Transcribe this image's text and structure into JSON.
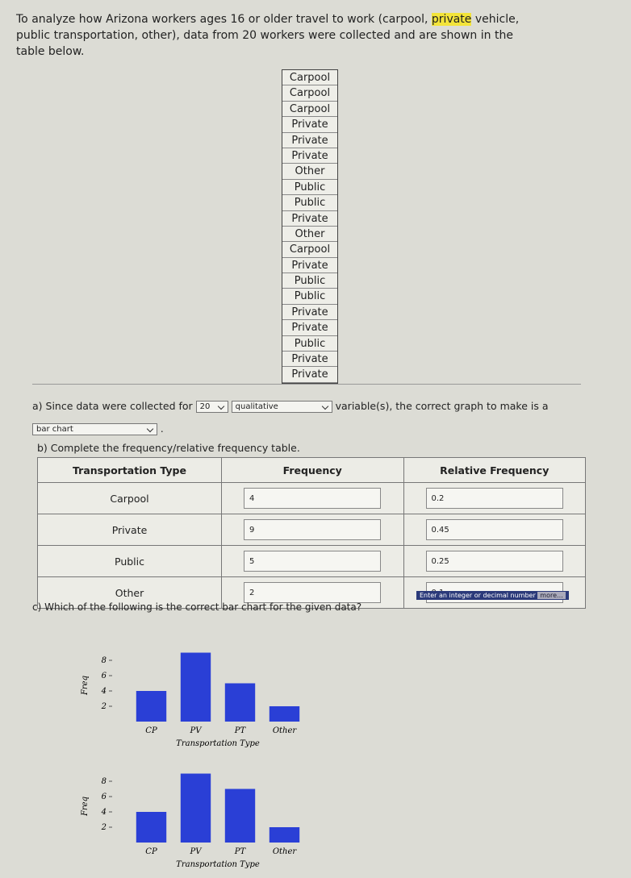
{
  "intro": {
    "before": "To analyze how Arizona workers ages 16 or older travel to work (carpool,",
    "highlight": "private",
    "after": "vehicle, public transportation, other), data from 20 workers were collected and are shown in the table below."
  },
  "data_list": [
    "Carpool",
    "Carpool",
    "Carpool",
    "Private",
    "Private",
    "Private",
    "Other",
    "Public",
    "Public",
    "Private",
    "Other",
    "Carpool",
    "Private",
    "Public",
    "Public",
    "Private",
    "Private",
    "Public",
    "Private",
    "Private"
  ],
  "part_a": {
    "prefix": "a) Since data were collected for",
    "dropdown1": "20",
    "dropdown2": "qualitative",
    "middle": "variable(s), the correct graph to make is a",
    "dropdown3": "bar chart",
    "suffix": "."
  },
  "part_b": {
    "prompt": "b) Complete the frequency/relative frequency table.",
    "headers": [
      "Transportation Type",
      "Frequency",
      "Relative Frequency"
    ],
    "rows": [
      [
        "Carpool",
        4,
        0.2
      ],
      [
        "Private",
        9,
        0.45
      ],
      [
        "Public",
        5,
        0.25
      ],
      [
        "Other",
        2,
        0.1
      ]
    ],
    "hint": "Enter an integer or decimal number",
    "more": "more..."
  },
  "part_c": {
    "prompt": "c) Which of the following is the correct bar chart for the given data?",
    "charts": [
      {
        "type": "bar",
        "categories": [
          "CP",
          "PV",
          "PT",
          "Other"
        ],
        "values": [
          4,
          9,
          5,
          2
        ],
        "ylim": [
          0,
          10
        ],
        "yticks": [
          2,
          4,
          6,
          8
        ],
        "xlabel": "Transportation Type",
        "ylabel": "Freq",
        "color": "#2a3fd6"
      },
      {
        "type": "bar",
        "categories": [
          "CP",
          "PV",
          "PT",
          "Other"
        ],
        "values": [
          4,
          9,
          7,
          2
        ],
        "ylim": [
          0,
          10
        ],
        "yticks": [
          2,
          4,
          6,
          8
        ],
        "xlabel": "Transportation Type",
        "ylabel": "Freq",
        "color": "#2a3fd6"
      }
    ]
  }
}
